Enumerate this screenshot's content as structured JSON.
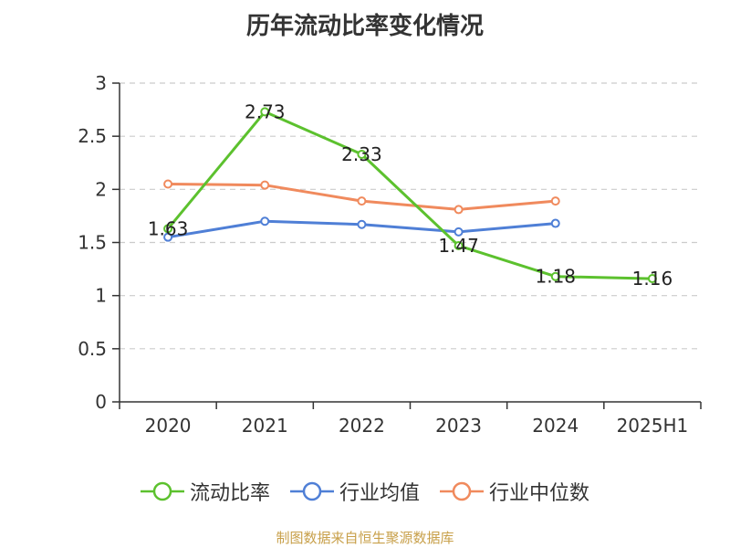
{
  "title": "历年流动比率变化情况",
  "source": "制图数据来自恒生聚源数据库",
  "colors": {
    "source_text": "#c8a04a",
    "axis": "#333333",
    "grid": "#cccccc"
  },
  "chart_data": {
    "type": "line",
    "title": "历年流动比率变化情况",
    "categories": [
      "2020",
      "2021",
      "2022",
      "2023",
      "2024",
      "2025H1"
    ],
    "ylim": [
      0,
      3
    ],
    "yticks": [
      "0",
      "0.5",
      "1",
      "1.5",
      "2",
      "2.5",
      "3"
    ],
    "grid": true,
    "legend_position": "bottom",
    "series": [
      {
        "name": "流动比率",
        "color": "#5cc12e",
        "values": [
          1.63,
          2.73,
          2.33,
          1.47,
          1.18,
          1.16
        ],
        "labels": [
          "1.63",
          "2.73",
          "2.33",
          "1.47",
          "1.18",
          "1.16"
        ]
      },
      {
        "name": "行业均值",
        "color": "#4f7fd6",
        "values": [
          1.55,
          1.7,
          1.67,
          1.6,
          1.68,
          null
        ]
      },
      {
        "name": "行业中位数",
        "color": "#f08a5d",
        "values": [
          2.05,
          2.04,
          1.89,
          1.81,
          1.89,
          null
        ]
      }
    ]
  }
}
